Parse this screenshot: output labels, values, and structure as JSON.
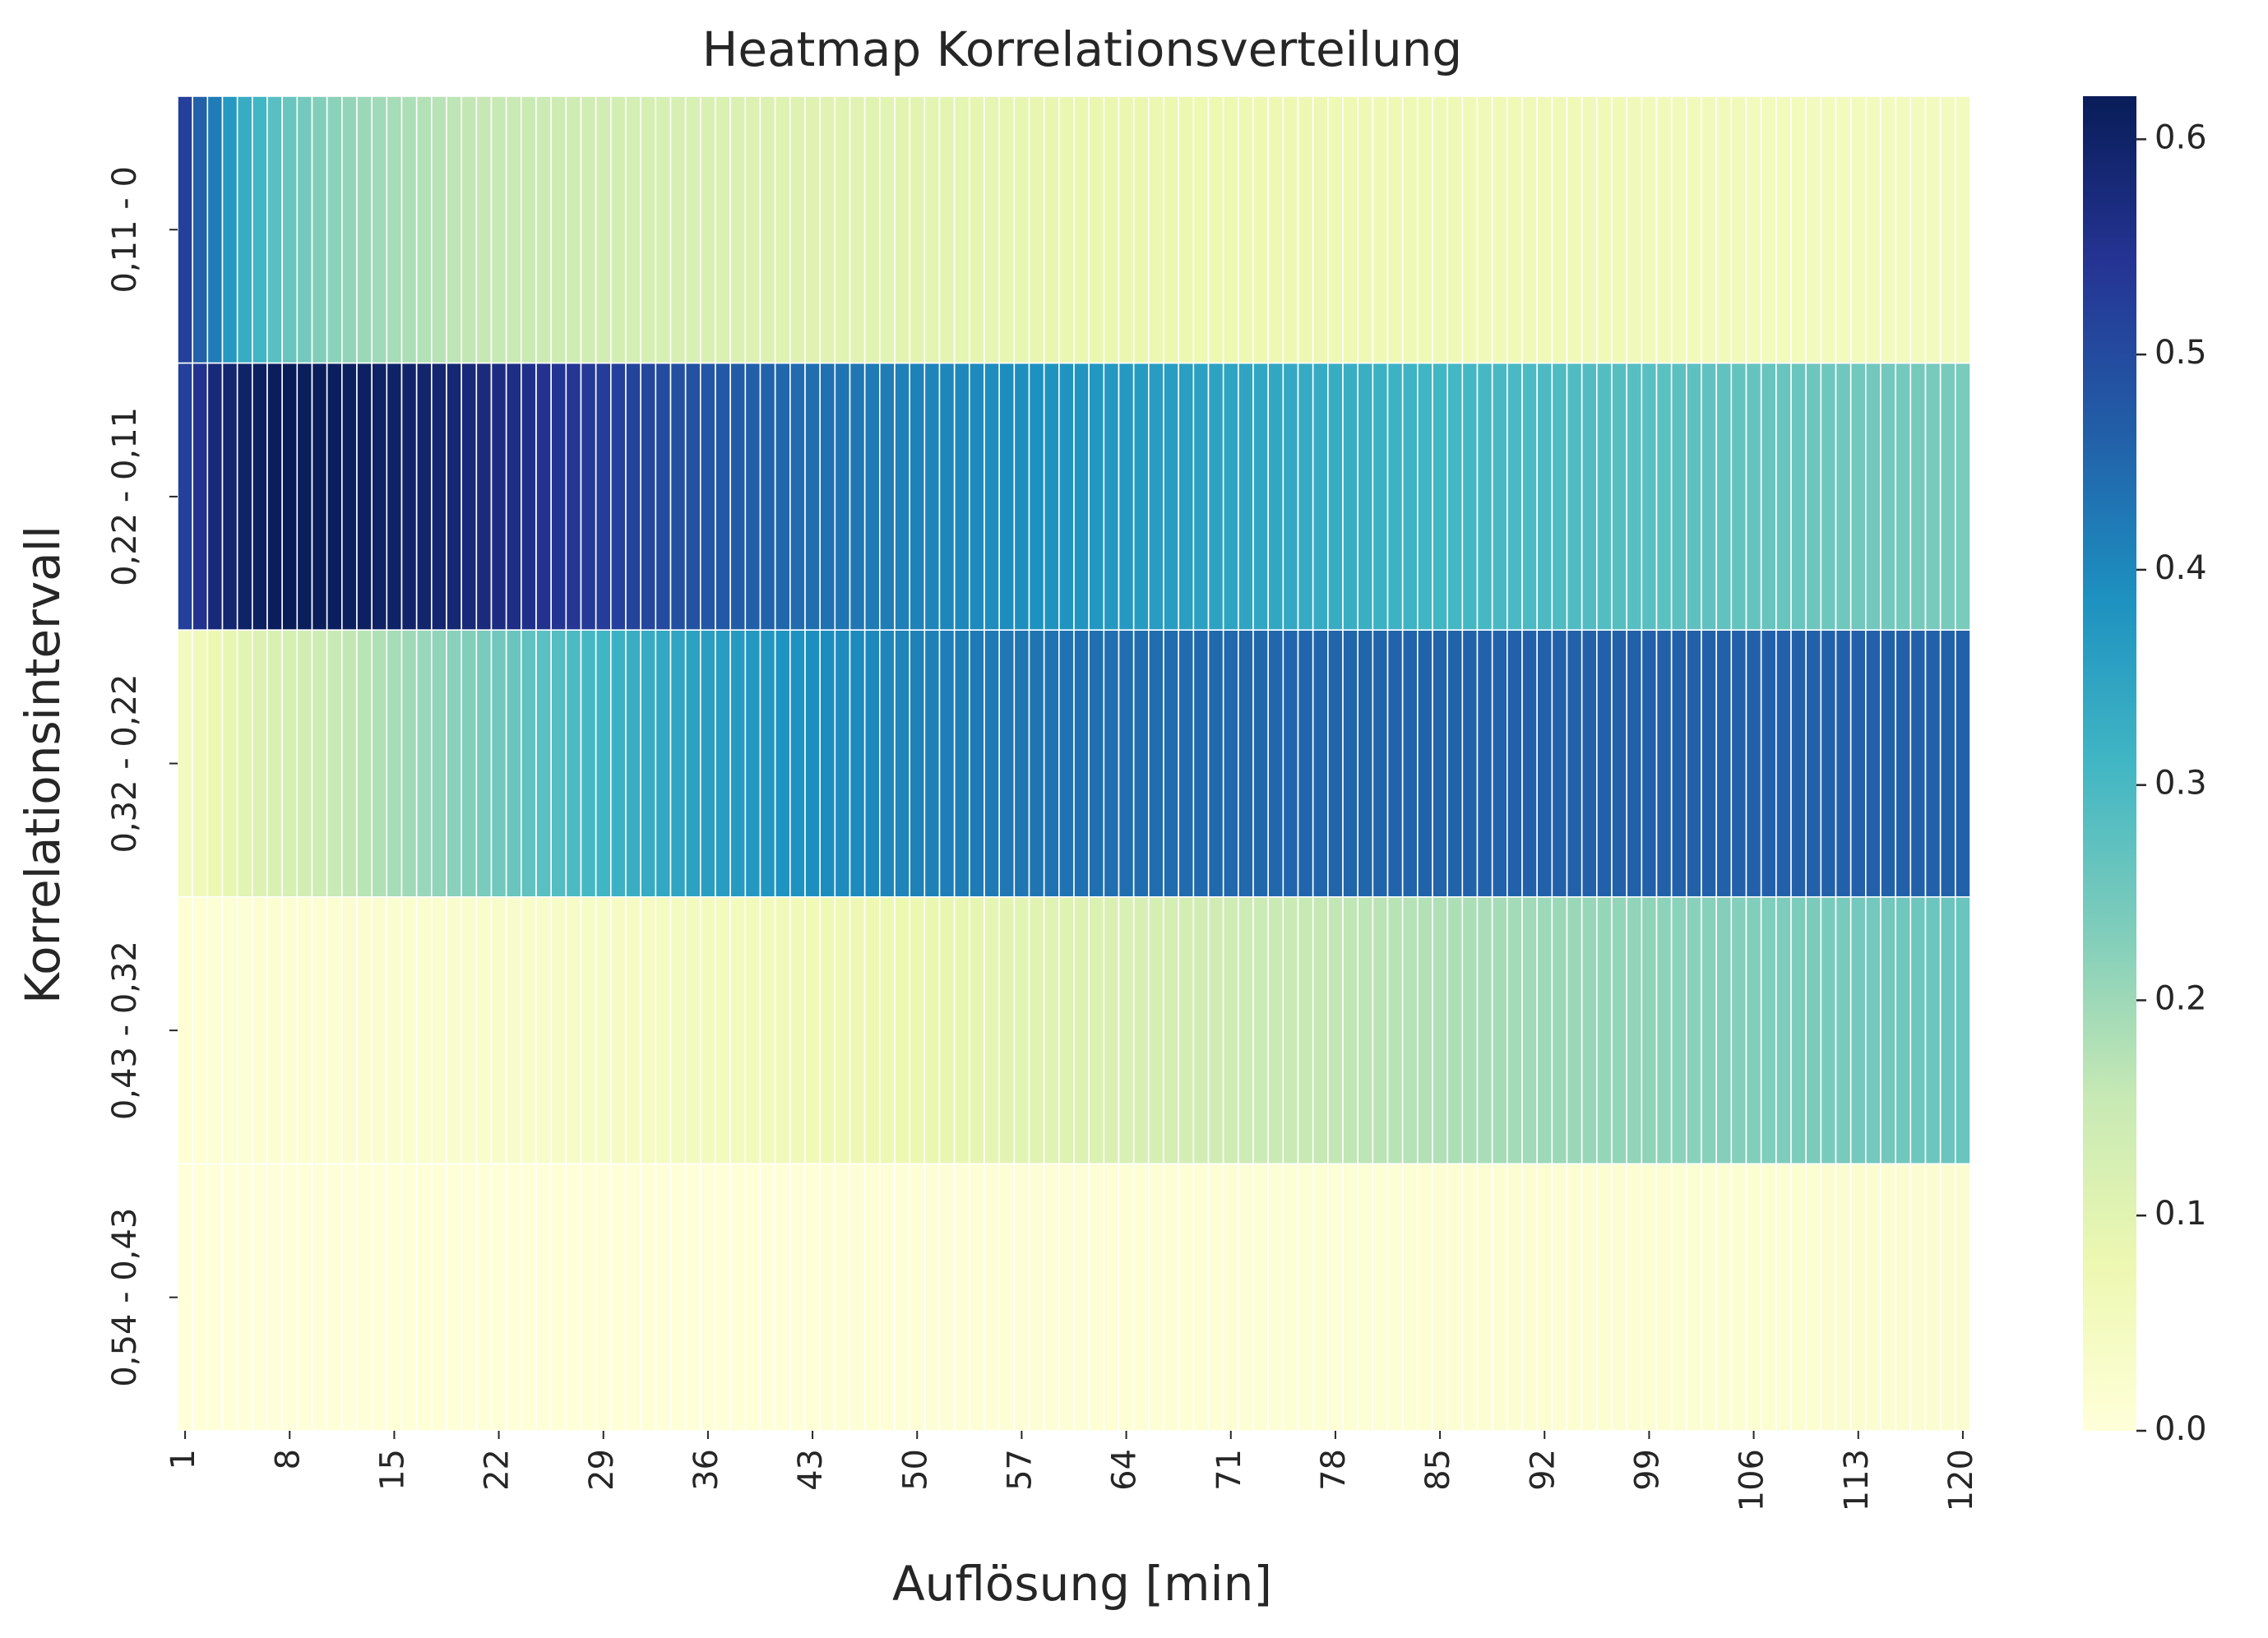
{
  "chart_data": {
    "type": "heatmap",
    "title": "Heatmap Korrelationsverteilung",
    "xlabel": "Auflösung [min]",
    "ylabel": "Korrelationsintervall",
    "x": {
      "start": 1,
      "end": 120,
      "step": 1
    },
    "x_tick_labels": [
      "1",
      "8",
      "15",
      "22",
      "29",
      "36",
      "43",
      "50",
      "57",
      "64",
      "71",
      "78",
      "85",
      "92",
      "99",
      "106",
      "113",
      "120"
    ],
    "rows": [
      {
        "label": "0,11 - 0",
        "profile": [
          [
            1,
            0.52
          ],
          [
            2,
            0.46
          ],
          [
            3,
            0.42
          ],
          [
            4,
            0.37
          ],
          [
            5,
            0.33
          ],
          [
            6,
            0.31
          ],
          [
            7,
            0.28
          ],
          [
            8,
            0.26
          ],
          [
            10,
            0.23
          ],
          [
            12,
            0.21
          ],
          [
            15,
            0.19
          ],
          [
            20,
            0.16
          ],
          [
            30,
            0.13
          ],
          [
            40,
            0.11
          ],
          [
            60,
            0.085
          ],
          [
            80,
            0.07
          ],
          [
            100,
            0.06
          ],
          [
            120,
            0.05
          ]
        ]
      },
      {
        "label": "0,22 - 0,11",
        "profile": [
          [
            1,
            0.52
          ],
          [
            3,
            0.58
          ],
          [
            6,
            0.61
          ],
          [
            8,
            0.62
          ],
          [
            12,
            0.61
          ],
          [
            18,
            0.59
          ],
          [
            25,
            0.55
          ],
          [
            30,
            0.52
          ],
          [
            36,
            0.48
          ],
          [
            43,
            0.44
          ],
          [
            50,
            0.41
          ],
          [
            57,
            0.39
          ],
          [
            64,
            0.37
          ],
          [
            71,
            0.35
          ],
          [
            78,
            0.33
          ],
          [
            85,
            0.31
          ],
          [
            92,
            0.295
          ],
          [
            99,
            0.28
          ],
          [
            106,
            0.265
          ],
          [
            113,
            0.25
          ],
          [
            120,
            0.24
          ]
        ]
      },
      {
        "label": "0,32 - 0,22",
        "profile": [
          [
            1,
            0.05
          ],
          [
            3,
            0.08
          ],
          [
            6,
            0.11
          ],
          [
            10,
            0.14
          ],
          [
            15,
            0.19
          ],
          [
            20,
            0.23
          ],
          [
            25,
            0.28
          ],
          [
            30,
            0.32
          ],
          [
            36,
            0.36
          ],
          [
            43,
            0.39
          ],
          [
            50,
            0.41
          ],
          [
            57,
            0.43
          ],
          [
            64,
            0.44
          ],
          [
            71,
            0.45
          ],
          [
            80,
            0.455
          ],
          [
            90,
            0.46
          ],
          [
            100,
            0.46
          ],
          [
            120,
            0.46
          ]
        ]
      },
      {
        "label": "0,43 - 0,32",
        "profile": [
          [
            1,
            0.01
          ],
          [
            10,
            0.015
          ],
          [
            20,
            0.025
          ],
          [
            30,
            0.04
          ],
          [
            40,
            0.06
          ],
          [
            50,
            0.08
          ],
          [
            57,
            0.1
          ],
          [
            64,
            0.12
          ],
          [
            71,
            0.14
          ],
          [
            78,
            0.16
          ],
          [
            85,
            0.18
          ],
          [
            92,
            0.2
          ],
          [
            99,
            0.215
          ],
          [
            106,
            0.23
          ],
          [
            113,
            0.245
          ],
          [
            120,
            0.26
          ]
        ]
      },
      {
        "label": "0,54 - 0,43",
        "profile": [
          [
            1,
            0.002
          ],
          [
            40,
            0.005
          ],
          [
            80,
            0.012
          ],
          [
            120,
            0.018
          ]
        ]
      }
    ],
    "value_range": [
      0,
      0.62
    ],
    "colormap": "YlGnBu",
    "colormap_stops": [
      "#ffffd9",
      "#edf8b1",
      "#c7e9b4",
      "#7fcdbb",
      "#41b6c4",
      "#1d91c0",
      "#225ea8",
      "#253494",
      "#081d58"
    ],
    "colorbar_ticks": [
      "0.0",
      "0.1",
      "0.2",
      "0.3",
      "0.4",
      "0.5",
      "0.6"
    ],
    "legend": "colorbar-right",
    "grid_line_color": "#ffffff"
  }
}
